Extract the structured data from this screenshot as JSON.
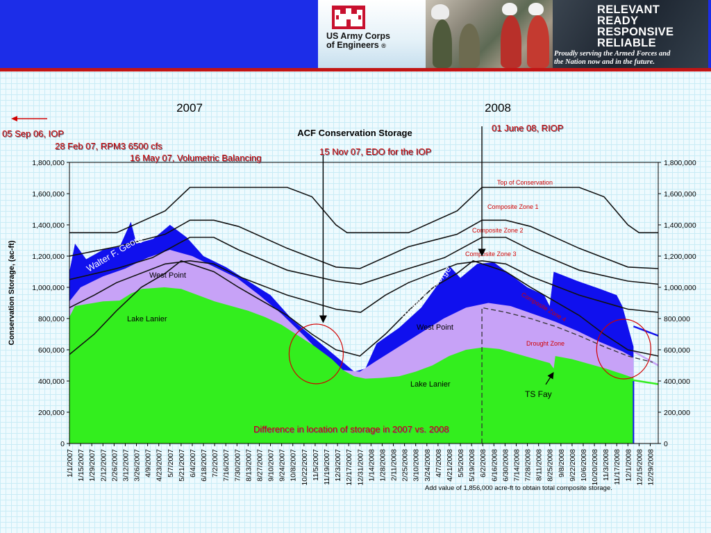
{
  "banner": {
    "org_name_line1": "US Army Corps",
    "org_name_line2": "of Engineers",
    "registered_mark": "®",
    "slogan": [
      "RELEVANT",
      "READY",
      "RESPONSIVE",
      "RELIABLE"
    ],
    "tagline_line1": "Proudly serving the Armed Forces and",
    "tagline_line2": "the Nation now and in the future.",
    "colors": {
      "band": "#1c2de8",
      "rule": "#c21515",
      "castle": "#c8102e"
    }
  },
  "year_labels": [
    "2007",
    "2008"
  ],
  "annotations": {
    "iop": "05 Sep 06, IOP",
    "rpm3": "28 Feb 07, RPM3 6500 cfs",
    "volumetric": "16 May 07, Volumetric Balancing",
    "edo": "15 Nov 07, EDO for the IOP",
    "riop": "01 June 08, RIOP",
    "difference": "Difference in location of storage in 2007 vs. 2008",
    "ts_fay": "TS Fay",
    "footnote": "Add value of 1,856,000 acre-ft to obtain total composite storage."
  },
  "chart_data": {
    "type": "area",
    "title": "ACF Conservation Storage",
    "ylabel": "Conservation Storage, (ac-ft)",
    "xlabel": "",
    "ylim": [
      0,
      1800000
    ],
    "xlim": [
      "2007-01-01",
      "2009-01-08"
    ],
    "y_ticks": [
      "0",
      "200,000",
      "400,000",
      "600,000",
      "800,000",
      "1,000,000",
      "1,200,000",
      "1,400,000",
      "1,600,000",
      "1,800,000"
    ],
    "x_ticks": [
      "1/1/2007",
      "1/15/2007",
      "1/29/2007",
      "2/12/2007",
      "2/26/2007",
      "3/12/2007",
      "3/26/2007",
      "4/9/2007",
      "4/23/2007",
      "5/7/2007",
      "5/21/2007",
      "6/4/2007",
      "6/18/2007",
      "7/2/2007",
      "7/16/2007",
      "7/30/2007",
      "8/13/2007",
      "8/27/2007",
      "9/10/2007",
      "9/24/2007",
      "10/8/2007",
      "10/22/2007",
      "11/5/2007",
      "11/19/2007",
      "12/3/2007",
      "12/17/2007",
      "12/31/2007",
      "1/14/2008",
      "1/28/2008",
      "2/11/2008",
      "2/25/2008",
      "3/10/2008",
      "3/24/2008",
      "4/7/2008",
      "4/21/2008",
      "5/5/2008",
      "5/19/2008",
      "6/2/2008",
      "6/16/2008",
      "6/30/2008",
      "7/14/2008",
      "7/28/2008",
      "8/11/2008",
      "8/25/2008",
      "9/8/2008",
      "9/22/2008",
      "10/6/2008",
      "10/20/2008",
      "11/3/2008",
      "11/17/2008",
      "12/1/2008",
      "12/15/2008",
      "12/29/2008"
    ],
    "grid": false,
    "legend": "none",
    "stack_layers": [
      {
        "name": "Lake Lanier",
        "color": "#33ee1e",
        "points": [
          [
            "2007-01-01",
            810000
          ],
          [
            "2007-01-08",
            880000
          ],
          [
            "2007-02-12",
            910000
          ],
          [
            "2007-03-05",
            915000
          ],
          [
            "2007-03-19",
            960000
          ],
          [
            "2007-04-02",
            990000
          ],
          [
            "2007-04-30",
            1000000
          ],
          [
            "2007-05-21",
            990000
          ],
          [
            "2007-06-11",
            950000
          ],
          [
            "2007-07-02",
            910000
          ],
          [
            "2007-07-23",
            880000
          ],
          [
            "2007-08-13",
            850000
          ],
          [
            "2007-09-03",
            810000
          ],
          [
            "2007-09-24",
            760000
          ],
          [
            "2007-10-15",
            690000
          ],
          [
            "2007-11-05",
            620000
          ],
          [
            "2007-11-26",
            540000
          ],
          [
            "2007-12-10",
            470000
          ],
          [
            "2007-12-24",
            430000
          ],
          [
            "2008-01-07",
            415000
          ],
          [
            "2008-01-28",
            420000
          ],
          [
            "2008-02-18",
            430000
          ],
          [
            "2008-03-10",
            460000
          ],
          [
            "2008-03-31",
            500000
          ],
          [
            "2008-04-21",
            560000
          ],
          [
            "2008-05-12",
            600000
          ],
          [
            "2008-06-02",
            615000
          ],
          [
            "2008-06-23",
            605000
          ],
          [
            "2008-07-14",
            575000
          ],
          [
            "2008-08-04",
            545000
          ],
          [
            "2008-08-25",
            515000
          ],
          [
            "2008-08-30",
            480000
          ],
          [
            "2008-09-01",
            560000
          ],
          [
            "2008-09-22",
            540000
          ],
          [
            "2008-10-13",
            510000
          ],
          [
            "2008-11-03",
            480000
          ],
          [
            "2008-11-24",
            445000
          ],
          [
            "2008-12-08",
            420000
          ]
        ]
      },
      {
        "name": "West Point",
        "color": "#c7a2f7",
        "points": [
          [
            "2007-01-01",
            910000
          ],
          [
            "2007-01-15",
            1000000
          ],
          [
            "2007-02-12",
            1070000
          ],
          [
            "2007-03-12",
            1120000
          ],
          [
            "2007-04-09",
            1190000
          ],
          [
            "2007-05-07",
            1240000
          ],
          [
            "2007-06-04",
            1200000
          ],
          [
            "2007-07-02",
            1130000
          ],
          [
            "2007-07-30",
            1060000
          ],
          [
            "2007-08-27",
            950000
          ],
          [
            "2007-09-24",
            830000
          ],
          [
            "2007-10-22",
            690000
          ],
          [
            "2007-11-19",
            540000
          ],
          [
            "2007-12-10",
            470000
          ],
          [
            "2007-12-31",
            460000
          ],
          [
            "2008-01-21",
            530000
          ],
          [
            "2008-02-18",
            620000
          ],
          [
            "2008-03-17",
            710000
          ],
          [
            "2008-04-14",
            800000
          ],
          [
            "2008-05-12",
            870000
          ],
          [
            "2008-06-09",
            900000
          ],
          [
            "2008-07-07",
            880000
          ],
          [
            "2008-08-04",
            830000
          ],
          [
            "2008-09-01",
            780000
          ],
          [
            "2008-09-29",
            720000
          ],
          [
            "2008-10-27",
            650000
          ],
          [
            "2008-11-24",
            590000
          ],
          [
            "2008-12-08",
            550000
          ]
        ]
      },
      {
        "name": "Walter F. George",
        "color": "#1010ee",
        "points": [
          [
            "2007-01-01",
            1100000
          ],
          [
            "2007-01-08",
            1280000
          ],
          [
            "2007-01-22",
            1180000
          ],
          [
            "2007-02-12",
            1240000
          ],
          [
            "2007-03-05",
            1260000
          ],
          [
            "2007-03-19",
            1420000
          ],
          [
            "2007-03-26",
            1280000
          ],
          [
            "2007-04-16",
            1310000
          ],
          [
            "2007-05-07",
            1400000
          ],
          [
            "2007-05-28",
            1320000
          ],
          [
            "2007-06-18",
            1200000
          ],
          [
            "2007-07-16",
            1130000
          ],
          [
            "2007-08-13",
            1040000
          ],
          [
            "2007-09-10",
            950000
          ],
          [
            "2007-10-08",
            790000
          ],
          [
            "2007-11-05",
            670000
          ],
          [
            "2007-12-03",
            550000
          ],
          [
            "2007-12-24",
            460000
          ],
          [
            "2008-01-07",
            480000
          ],
          [
            "2008-01-21",
            640000
          ],
          [
            "2008-02-18",
            740000
          ],
          [
            "2008-03-17",
            870000
          ],
          [
            "2008-04-07",
            1020000
          ],
          [
            "2008-04-21",
            1140000
          ],
          [
            "2008-05-05",
            1060000
          ],
          [
            "2008-05-26",
            1150000
          ],
          [
            "2008-06-16",
            1160000
          ],
          [
            "2008-07-07",
            1080000
          ],
          [
            "2008-07-28",
            1000000
          ],
          [
            "2008-08-18",
            950000
          ],
          [
            "2008-08-25",
            880000
          ],
          [
            "2008-08-30",
            1100000
          ],
          [
            "2008-09-29",
            1040000
          ],
          [
            "2008-10-27",
            990000
          ],
          [
            "2008-11-17",
            950000
          ],
          [
            "2008-11-24",
            880000
          ],
          [
            "2008-12-08",
            620000
          ]
        ]
      }
    ],
    "reference_lines": [
      {
        "name": "Top of Conservation",
        "points": [
          [
            "2007-01-01",
            1350000
          ],
          [
            "2007-03-01",
            1350000
          ],
          [
            "2007-05-01",
            1490000
          ],
          [
            "2007-06-01",
            1640000
          ],
          [
            "2007-10-01",
            1640000
          ],
          [
            "2007-11-01",
            1580000
          ],
          [
            "2007-12-01",
            1400000
          ],
          [
            "2007-12-15",
            1350000
          ],
          [
            "2008-03-01",
            1350000
          ],
          [
            "2008-05-01",
            1490000
          ],
          [
            "2008-06-01",
            1640000
          ],
          [
            "2008-10-01",
            1640000
          ],
          [
            "2008-11-01",
            1580000
          ],
          [
            "2008-12-01",
            1400000
          ],
          [
            "2008-12-15",
            1350000
          ],
          [
            "2009-01-08",
            1350000
          ]
        ]
      },
      {
        "name": "Composite Zone 1",
        "points": [
          [
            "2007-01-01",
            1200000
          ],
          [
            "2007-03-01",
            1260000
          ],
          [
            "2007-05-01",
            1340000
          ],
          [
            "2007-06-01",
            1430000
          ],
          [
            "2007-07-01",
            1430000
          ],
          [
            "2007-08-01",
            1390000
          ],
          [
            "2007-10-01",
            1250000
          ],
          [
            "2007-12-01",
            1130000
          ],
          [
            "2007-12-31",
            1120000
          ],
          [
            "2008-03-01",
            1260000
          ],
          [
            "2008-05-01",
            1340000
          ],
          [
            "2008-06-01",
            1430000
          ],
          [
            "2008-07-01",
            1430000
          ],
          [
            "2008-08-01",
            1390000
          ],
          [
            "2008-10-01",
            1250000
          ],
          [
            "2008-12-01",
            1130000
          ],
          [
            "2009-01-08",
            1120000
          ]
        ]
      },
      {
        "name": "Composite Zone 2",
        "points": [
          [
            "2007-01-01",
            1050000
          ],
          [
            "2007-03-01",
            1120000
          ],
          [
            "2007-04-15",
            1190000
          ],
          [
            "2007-06-01",
            1320000
          ],
          [
            "2007-07-01",
            1320000
          ],
          [
            "2007-08-01",
            1240000
          ],
          [
            "2007-10-01",
            1110000
          ],
          [
            "2007-12-01",
            1040000
          ],
          [
            "2008-01-01",
            1020000
          ],
          [
            "2008-03-01",
            1120000
          ],
          [
            "2008-04-15",
            1190000
          ],
          [
            "2008-06-01",
            1320000
          ],
          [
            "2008-07-01",
            1320000
          ],
          [
            "2008-08-01",
            1240000
          ],
          [
            "2008-10-01",
            1110000
          ],
          [
            "2008-12-01",
            1040000
          ],
          [
            "2009-01-08",
            1020000
          ]
        ]
      },
      {
        "name": "Composite Zone 3",
        "points": [
          [
            "2007-01-01",
            870000
          ],
          [
            "2007-02-01",
            950000
          ],
          [
            "2007-03-01",
            1030000
          ],
          [
            "2007-05-01",
            1150000
          ],
          [
            "2007-06-01",
            1170000
          ],
          [
            "2007-07-01",
            1150000
          ],
          [
            "2007-08-01",
            1070000
          ],
          [
            "2007-10-01",
            950000
          ],
          [
            "2007-12-01",
            860000
          ],
          [
            "2008-01-01",
            840000
          ],
          [
            "2008-02-01",
            950000
          ],
          [
            "2008-03-01",
            1030000
          ],
          [
            "2008-05-01",
            1150000
          ],
          [
            "2008-06-01",
            1170000
          ],
          [
            "2008-07-01",
            1150000
          ],
          [
            "2008-08-01",
            1070000
          ],
          [
            "2008-10-01",
            950000
          ],
          [
            "2008-12-01",
            860000
          ],
          [
            "2009-01-08",
            840000
          ]
        ]
      },
      {
        "name": "Composite Zone 4",
        "points": [
          [
            "2007-01-01",
            570000
          ],
          [
            "2007-02-01",
            700000
          ],
          [
            "2007-03-01",
            850000
          ],
          [
            "2007-04-01",
            1000000
          ],
          [
            "2007-05-01",
            1090000
          ],
          [
            "2007-05-21",
            1170000
          ],
          [
            "2007-07-01",
            1100000
          ],
          [
            "2007-08-01",
            1000000
          ],
          [
            "2007-10-01",
            820000
          ],
          [
            "2007-11-01",
            700000
          ],
          [
            "2007-12-01",
            600000
          ],
          [
            "2007-12-31",
            560000
          ],
          [
            "2008-02-01",
            700000
          ],
          [
            "2008-03-01",
            850000
          ],
          [
            "2008-04-01",
            1000000
          ],
          [
            "2008-05-01",
            1090000
          ],
          [
            "2008-05-21",
            1170000
          ],
          [
            "2008-07-01",
            1100000
          ],
          [
            "2008-08-01",
            1000000
          ],
          [
            "2008-10-01",
            820000
          ],
          [
            "2008-11-01",
            700000
          ],
          [
            "2008-12-01",
            600000
          ],
          [
            "2009-01-08",
            560000
          ]
        ]
      }
    ],
    "drought_zone": {
      "name": "Drought Zone",
      "points": [
        [
          "2008-06-01",
          870000
        ],
        [
          "2008-07-01",
          840000
        ],
        [
          "2008-08-01",
          800000
        ],
        [
          "2008-09-01",
          750000
        ],
        [
          "2008-10-01",
          690000
        ],
        [
          "2008-11-01",
          620000
        ],
        [
          "2008-12-01",
          560000
        ],
        [
          "2009-01-01",
          520000
        ]
      ]
    },
    "extension_lines": [
      {
        "color": "#1010ee",
        "points": [
          [
            "2008-12-08",
            750000
          ],
          [
            "2009-01-08",
            690000
          ]
        ]
      },
      {
        "color": "#c7a2f7",
        "points": [
          [
            "2008-12-08",
            590000
          ],
          [
            "2009-01-08",
            500000
          ]
        ]
      },
      {
        "color": "#33ee1e",
        "points": [
          [
            "2008-12-08",
            405000
          ],
          [
            "2009-01-08",
            380000
          ]
        ]
      }
    ],
    "drop_line_date": "2008-12-08",
    "markers": [
      {
        "label": "15 Nov 07, EDO for the IOP",
        "date": "2007-11-15"
      },
      {
        "label": "01 June 08, RIOP",
        "date": "2008-06-01"
      }
    ],
    "circled_periods": [
      "2007-11-15",
      "2008-12-01"
    ]
  }
}
